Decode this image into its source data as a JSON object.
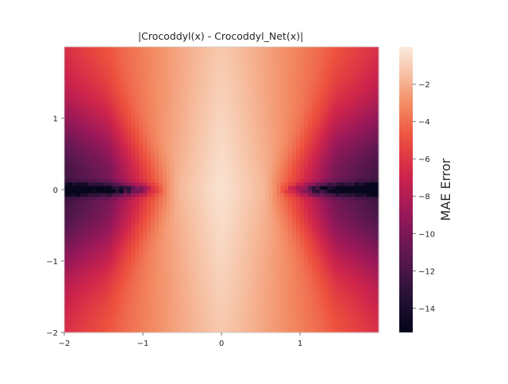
{
  "chart_data": {
    "type": "heatmap",
    "title": "|Crocoddyl(x) - Crocoddyl_Net(x)|",
    "xlabel": "",
    "ylabel": "",
    "xlim": [
      -2,
      2
    ],
    "ylim": [
      -2,
      2
    ],
    "x_ticks": [
      -2,
      -1,
      0,
      1
    ],
    "y_ticks": [
      -2,
      -1,
      0,
      1
    ],
    "x_tick_labels": [
      "−2",
      "−1",
      "0",
      "1"
    ],
    "y_tick_labels": [
      "−2",
      "−1",
      "0",
      "1"
    ],
    "grid": false,
    "colormap": "rocket",
    "colorbar": {
      "label": "MAE Error",
      "range": [
        -15.3,
        0
      ],
      "ticks": [
        -2,
        -4,
        -6,
        -8,
        -10,
        -12,
        -14
      ],
      "tick_labels": [
        "−2",
        "−4",
        "−6",
        "−8",
        "−10",
        "−12",
        "−14"
      ]
    },
    "description_of_field": {
      "near_x0": -0.3,
      "edge_corners": -4.5,
      "deep_band_y": 0.0,
      "deep_band_min": -15
    },
    "grid_resolution": 80
  }
}
